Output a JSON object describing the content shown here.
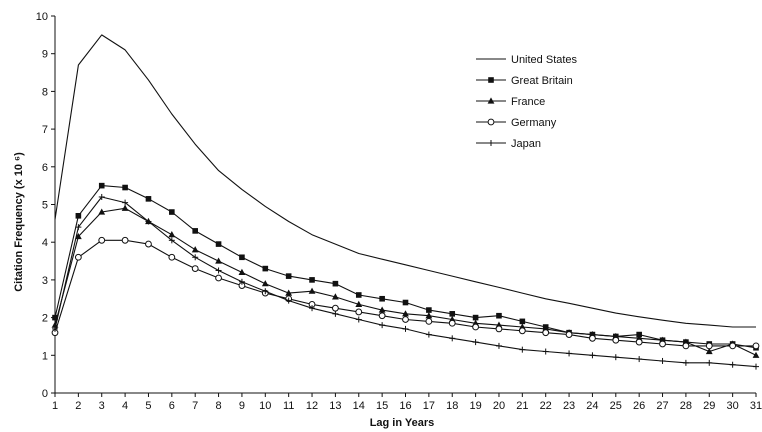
{
  "chart_data": {
    "type": "line",
    "title": "",
    "xlabel": "Lag in Years",
    "ylabel": "Citation Frequency (x 10 ⁶)",
    "xlim": [
      1,
      31
    ],
    "ylim": [
      0,
      10
    ],
    "x": [
      1,
      2,
      3,
      4,
      5,
      6,
      7,
      8,
      9,
      10,
      11,
      12,
      13,
      14,
      15,
      16,
      17,
      18,
      19,
      20,
      21,
      22,
      23,
      24,
      25,
      26,
      27,
      28,
      29,
      30,
      31
    ],
    "x_ticks": [
      "1",
      "2",
      "3",
      "4",
      "5",
      "6",
      "7",
      "8",
      "9",
      "10",
      "11",
      "12",
      "13",
      "14",
      "15",
      "16",
      "17",
      "18",
      "19",
      "20",
      "21",
      "22",
      "23",
      "24",
      "25",
      "26",
      "27",
      "28",
      "29",
      "30",
      "31"
    ],
    "y_ticks": [
      "0",
      "1",
      "2",
      "3",
      "4",
      "5",
      "6",
      "7",
      "8",
      "9",
      "10"
    ],
    "grid": false,
    "legend_position": "top-right",
    "series": [
      {
        "name": "United States",
        "marker": "none",
        "color": "#111111",
        "values": [
          4.6,
          8.7,
          9.5,
          9.1,
          8.3,
          7.4,
          6.6,
          5.9,
          5.4,
          4.95,
          4.55,
          4.2,
          3.95,
          3.7,
          3.55,
          3.4,
          3.25,
          3.1,
          2.95,
          2.8,
          2.65,
          2.5,
          2.38,
          2.25,
          2.12,
          2.02,
          1.93,
          1.85,
          1.8,
          1.75,
          1.75
        ]
      },
      {
        "name": "Great Britain",
        "marker": "square",
        "color": "#111111",
        "values": [
          2.0,
          4.7,
          5.5,
          5.45,
          5.15,
          4.8,
          4.3,
          3.95,
          3.6,
          3.3,
          3.1,
          3.0,
          2.9,
          2.6,
          2.5,
          2.4,
          2.2,
          2.1,
          2.0,
          2.05,
          1.9,
          1.75,
          1.6,
          1.55,
          1.5,
          1.55,
          1.4,
          1.35,
          1.3,
          1.3,
          1.2
        ]
      },
      {
        "name": "France",
        "marker": "triangle",
        "color": "#111111",
        "values": [
          1.8,
          4.15,
          4.8,
          4.9,
          4.55,
          4.2,
          3.8,
          3.5,
          3.2,
          2.9,
          2.65,
          2.7,
          2.55,
          2.35,
          2.2,
          2.1,
          2.05,
          1.95,
          1.85,
          1.8,
          1.75,
          1.7,
          1.6,
          1.55,
          1.5,
          1.45,
          1.4,
          1.35,
          1.1,
          1.3,
          1.0
        ]
      },
      {
        "name": "Germany",
        "marker": "circle",
        "color": "#111111",
        "values": [
          1.6,
          3.6,
          4.05,
          4.05,
          3.95,
          3.6,
          3.3,
          3.05,
          2.85,
          2.65,
          2.5,
          2.35,
          2.25,
          2.15,
          2.05,
          1.95,
          1.9,
          1.85,
          1.75,
          1.7,
          1.65,
          1.6,
          1.55,
          1.45,
          1.4,
          1.35,
          1.3,
          1.25,
          1.25,
          1.25,
          1.25
        ]
      },
      {
        "name": "Japan",
        "marker": "plus",
        "color": "#111111",
        "values": [
          1.7,
          4.4,
          5.2,
          5.05,
          4.55,
          4.05,
          3.6,
          3.25,
          2.95,
          2.7,
          2.45,
          2.25,
          2.1,
          1.95,
          1.8,
          1.7,
          1.55,
          1.45,
          1.35,
          1.25,
          1.15,
          1.1,
          1.05,
          1.0,
          0.95,
          0.9,
          0.85,
          0.8,
          0.8,
          0.75,
          0.7
        ]
      }
    ]
  }
}
